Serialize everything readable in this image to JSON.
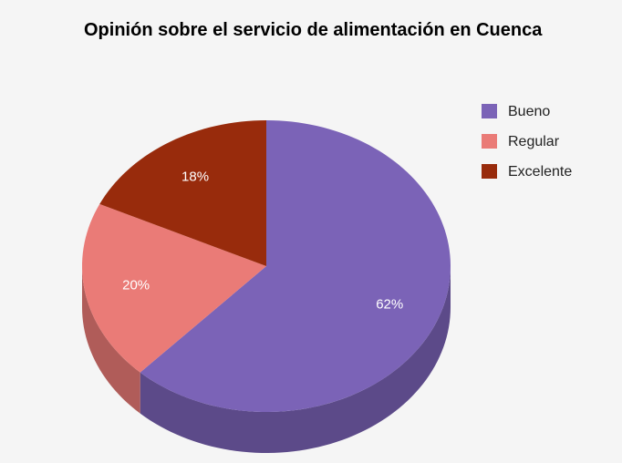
{
  "chart_data": {
    "type": "pie",
    "title": "Opinión sobre el servicio de alimentación en Cuenca",
    "categories": [
      "Bueno",
      "Regular",
      "Excelente"
    ],
    "values": [
      62,
      20,
      18
    ],
    "value_labels": [
      "62%",
      "20%",
      "18%"
    ],
    "colors": [
      "#7b63b7",
      "#ea7b77",
      "#982b0c"
    ],
    "legend": "right",
    "three_d": true
  }
}
